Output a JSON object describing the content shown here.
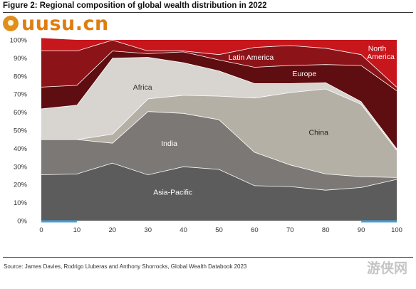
{
  "figure": {
    "title": "Figure 2: Regional composition of global wealth distribution in 2022",
    "source": "Source: James Davies, Rodrigo Lluberas and Anthony Shorrocks, Global Wealth Databook 2023"
  },
  "watermarks": {
    "logo_text": "uusu.cn",
    "corner_text": "游侠网"
  },
  "chart_data": {
    "type": "area",
    "stacked": true,
    "x": [
      0,
      10,
      20,
      30,
      40,
      50,
      60,
      70,
      80,
      90,
      100
    ],
    "xlim": [
      0,
      100
    ],
    "ylim": [
      0,
      100
    ],
    "x_ticks": [
      0,
      10,
      20,
      30,
      40,
      50,
      60,
      70,
      80,
      90,
      100
    ],
    "y_ticks": [
      "0%",
      "10%",
      "20%",
      "30%",
      "40%",
      "50%",
      "60%",
      "70%",
      "80%",
      "90%",
      "100%"
    ],
    "grid": false,
    "series": [
      {
        "name": "Asia-Pacific",
        "color": "#5c5c5c",
        "label_color": "#ffffff",
        "values": [
          25.5,
          26,
          32,
          25.5,
          30,
          28.5,
          19.5,
          19,
          17,
          18.5,
          23
        ]
      },
      {
        "name": "India",
        "color": "#7b7876",
        "label_color": "#ffffff",
        "values": [
          19.5,
          19,
          11,
          35,
          29.5,
          27.5,
          18.5,
          12,
          9,
          6,
          1
        ]
      },
      {
        "name": "China",
        "color": "#b5b0a6",
        "label_color": "#222222",
        "values": [
          0,
          0,
          5,
          7,
          10,
          13,
          30,
          40,
          47,
          40,
          15
        ]
      },
      {
        "name": "Africa",
        "color": "#d8d5d0",
        "label_color": "#333333",
        "values": [
          17,
          19,
          42,
          23,
          18,
          14,
          8,
          5,
          3.5,
          1.5,
          1
        ]
      },
      {
        "name": "Europe",
        "color": "#5e0d10",
        "label_color": "#ffffff",
        "values": [
          12,
          11,
          4,
          2,
          6,
          6,
          9,
          10,
          10,
          20,
          32
        ]
      },
      {
        "name": "Latin America",
        "color": "#8c1419",
        "label_color": "#ffffff",
        "values": [
          20,
          19,
          6,
          1.5,
          0.5,
          3,
          11,
          11,
          9,
          6,
          2
        ]
      },
      {
        "name": "North America",
        "color": "#c8161d",
        "label_color": "#ffffff",
        "values": [
          7,
          6,
          0,
          6,
          6,
          8,
          4,
          3,
          4.5,
          8,
          26
        ]
      }
    ],
    "labels": [
      {
        "text": "Asia-Pacific",
        "x": 37,
        "y": 16
      },
      {
        "text": "India",
        "x": 36,
        "y": 43
      },
      {
        "text": "China",
        "x": 78,
        "y": 49
      },
      {
        "text": "Africa",
        "x": 28.5,
        "y": 74
      },
      {
        "text": "Europe",
        "x": 74,
        "y": 81.5
      },
      {
        "text": "Latin America",
        "x": 59,
        "y": 90.5
      },
      {
        "text": "North",
        "x": 94.5,
        "y": 95.5
      },
      {
        "text": "America",
        "x": 95.5,
        "y": 91
      }
    ]
  }
}
